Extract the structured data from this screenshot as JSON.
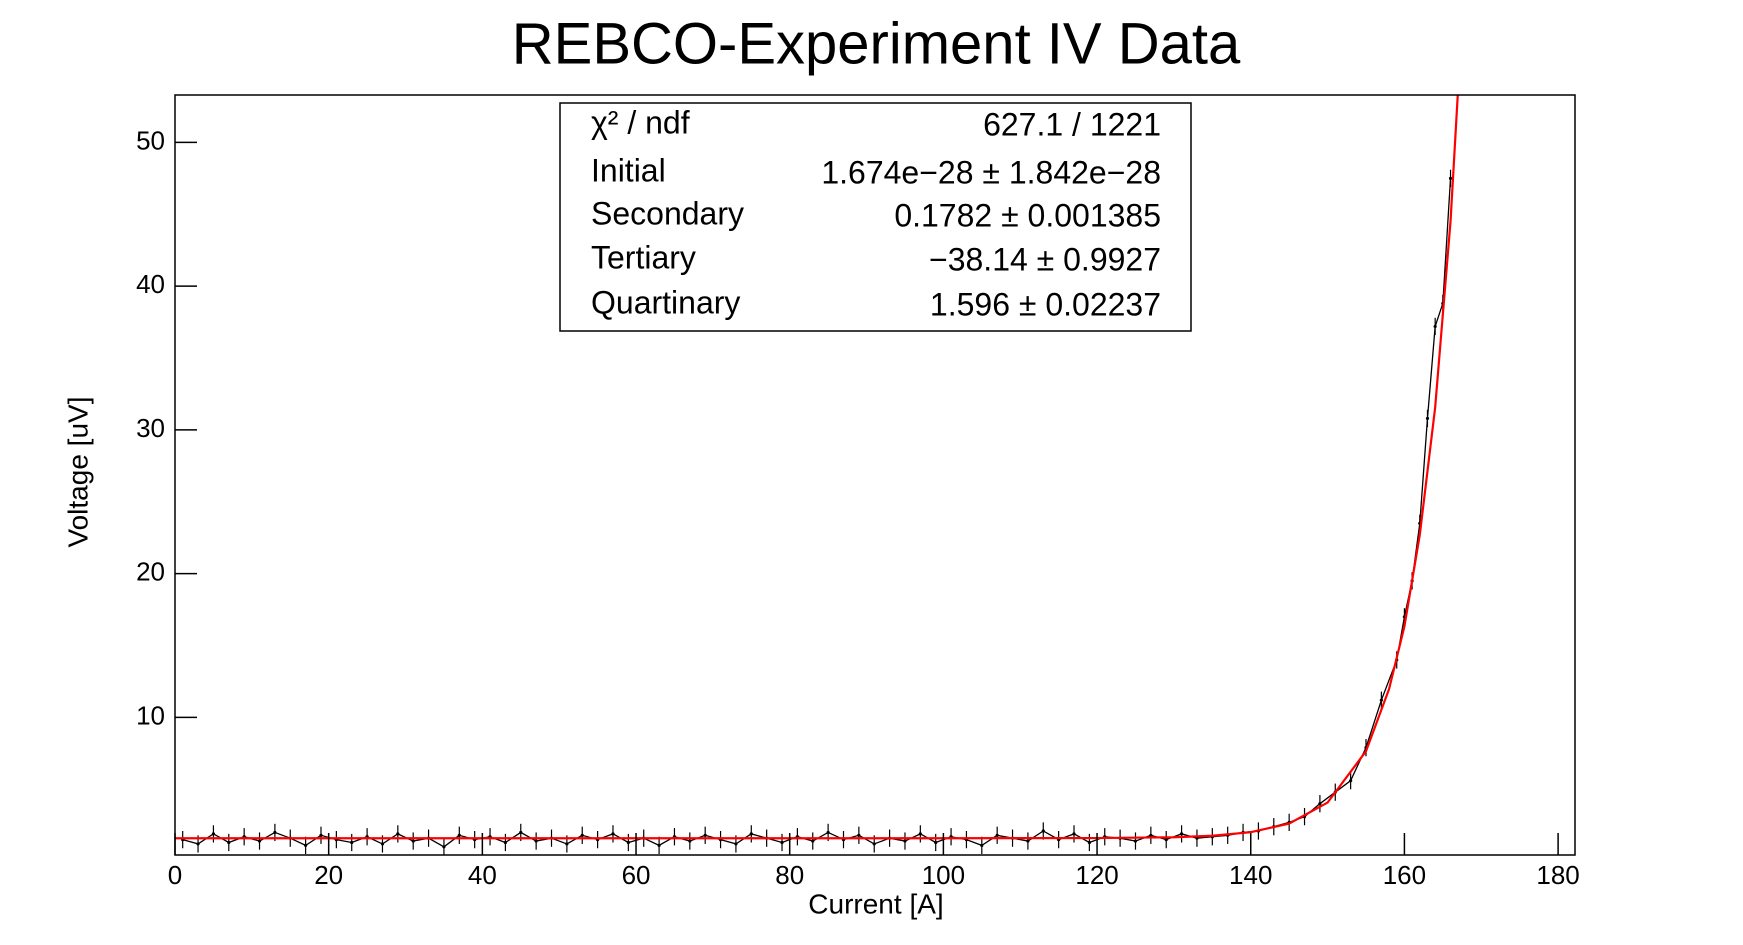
{
  "chart_data": {
    "type": "line",
    "title": "REBCO-Experiment IV Data",
    "x_label": "Current [A]",
    "y_label": "Voltage [uV]",
    "xlim": [
      0,
      182.2
    ],
    "ylim": [
      0.43,
      53.3
    ],
    "xticks": [
      0,
      20,
      40,
      60,
      80,
      100,
      120,
      140,
      160,
      180
    ],
    "yticks": [
      10,
      20,
      30,
      40,
      50
    ],
    "y_error": 0.6,
    "x": [
      1,
      3,
      5,
      7,
      9,
      11,
      13,
      15,
      17,
      19,
      21,
      23,
      25,
      27,
      29,
      31,
      33,
      35,
      37,
      39,
      41,
      43,
      45,
      47,
      49,
      51,
      53,
      55,
      57,
      59,
      61,
      63,
      65,
      67,
      69,
      71,
      73,
      75,
      77,
      79,
      81,
      83,
      85,
      87,
      89,
      91,
      93,
      95,
      97,
      99,
      101,
      103,
      105,
      107,
      109,
      111,
      113,
      115,
      117,
      119,
      121,
      123,
      125,
      127,
      129,
      131,
      133,
      135,
      137,
      139,
      141,
      143,
      145,
      147,
      149,
      151,
      153,
      155,
      157,
      159,
      160,
      161,
      162,
      163,
      164,
      165,
      166
    ],
    "series": [
      {
        "name": "Data",
        "color": "#000000",
        "values": [
          1.5,
          1.2,
          1.9,
          1.3,
          1.7,
          1.4,
          2.0,
          1.6,
          1.1,
          1.8,
          1.5,
          1.3,
          1.7,
          1.2,
          1.9,
          1.4,
          1.6,
          1.0,
          1.8,
          1.5,
          1.7,
          1.3,
          2.0,
          1.4,
          1.6,
          1.2,
          1.8,
          1.5,
          1.9,
          1.3,
          1.6,
          1.1,
          1.7,
          1.4,
          1.8,
          1.5,
          1.2,
          1.9,
          1.6,
          1.3,
          1.7,
          1.4,
          2.0,
          1.5,
          1.8,
          1.2,
          1.6,
          1.4,
          1.9,
          1.3,
          1.7,
          1.5,
          1.1,
          1.8,
          1.6,
          1.4,
          2.1,
          1.5,
          1.9,
          1.3,
          1.7,
          1.6,
          1.4,
          1.8,
          1.5,
          1.9,
          1.6,
          1.7,
          1.8,
          2.0,
          2.1,
          2.4,
          2.7,
          3.1,
          4.0,
          4.8,
          5.6,
          7.9,
          11.2,
          14.0,
          17.0,
          19.5,
          23.5,
          30.8,
          37.2,
          38.8,
          47.5
        ]
      },
      {
        "name": "Fit",
        "color": "#ff0000",
        "x": [
          0,
          20,
          40,
          60,
          80,
          100,
          120,
          130,
          135,
          140,
          145,
          150,
          155,
          158,
          160,
          162,
          164,
          166,
          168
        ],
        "values": [
          1.596,
          1.596,
          1.596,
          1.596,
          1.596,
          1.596,
          1.608,
          1.667,
          1.768,
          2.015,
          2.616,
          4.08,
          7.65,
          11.97,
          16.33,
          22.7,
          31.56,
          44.5,
          63.2
        ]
      }
    ],
    "stats": [
      [
        "χ² / ndf",
        "627.1 / 1221"
      ],
      [
        "Initial",
        "1.674e−28 ± 1.842e−28"
      ],
      [
        "Secondary",
        "0.1782 ± 0.001385"
      ],
      [
        "Tertiary",
        "−38.14 ± 0.9927"
      ],
      [
        "Quartinary",
        "1.596 ± 0.02237"
      ]
    ]
  }
}
